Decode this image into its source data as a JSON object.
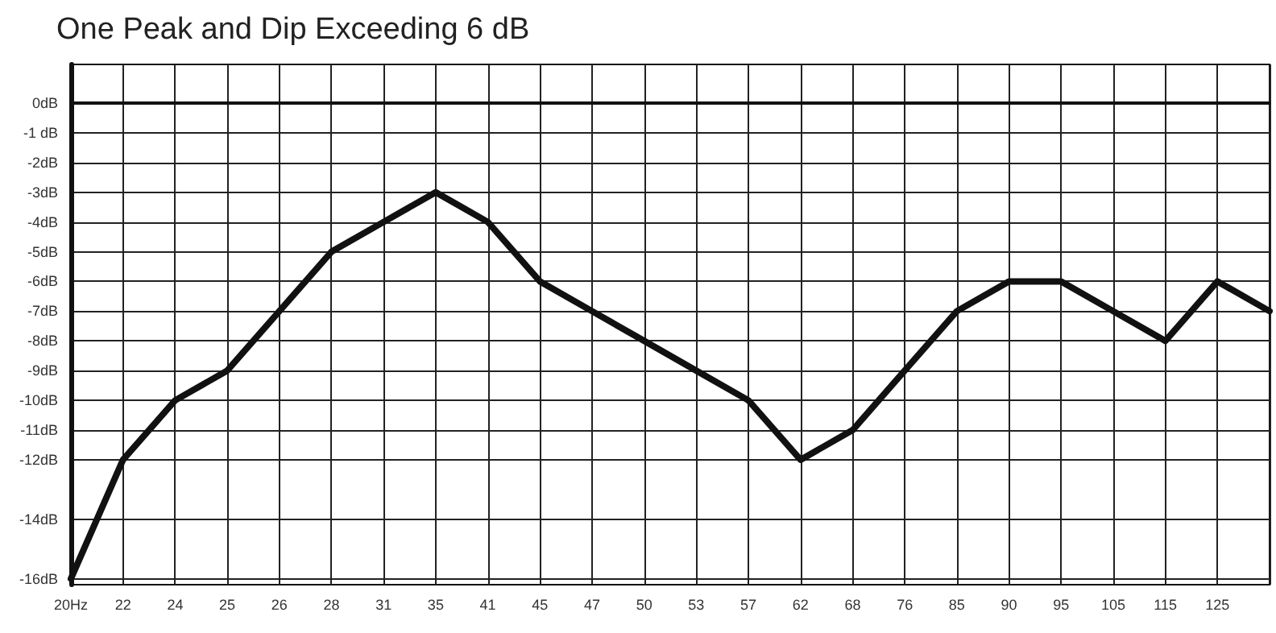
{
  "chart_data": {
    "type": "line",
    "title": "One Peak and Dip Exceeding 6 dB",
    "categories": [
      "20Hz",
      "22",
      "24",
      "25",
      "26",
      "28",
      "31",
      "35",
      "41",
      "45",
      "47",
      "50",
      "53",
      "57",
      "62",
      "68",
      "76",
      "85",
      "90",
      "95",
      "105",
      "115",
      "125",
      null
    ],
    "series": [
      {
        "color": "#111111",
        "values": [
          -16,
          -12,
          -10,
          -9,
          -7,
          -5,
          -4,
          -3,
          -4,
          -6,
          -7,
          -8,
          -9,
          -10,
          -12,
          -11,
          -9,
          -7,
          -6,
          -6,
          -7,
          -8,
          -6,
          -7
        ]
      }
    ],
    "ylim": [
      -16.2,
      1.3
    ],
    "yticks": [
      {
        "value": 0,
        "label": "0dB"
      },
      {
        "value": -1,
        "label": "-1 dB"
      },
      {
        "value": -2,
        "label": "-2dB"
      },
      {
        "value": -3,
        "label": "-3dB"
      },
      {
        "value": -4,
        "label": "-4dB"
      },
      {
        "value": -5,
        "label": "-5dB"
      },
      {
        "value": -6,
        "label": "-6dB"
      },
      {
        "value": -7,
        "label": "-7dB"
      },
      {
        "value": -8,
        "label": "-8dB"
      },
      {
        "value": -9,
        "label": "-9dB"
      },
      {
        "value": -10,
        "label": "-10dB"
      },
      {
        "value": -11,
        "label": "-11dB"
      },
      {
        "value": -12,
        "label": "-12dB"
      },
      {
        "value": -14,
        "label": "-14dB"
      },
      {
        "value": -16,
        "label": "-16dB"
      }
    ],
    "grid": true,
    "marker": "none",
    "line_style": "solid"
  }
}
